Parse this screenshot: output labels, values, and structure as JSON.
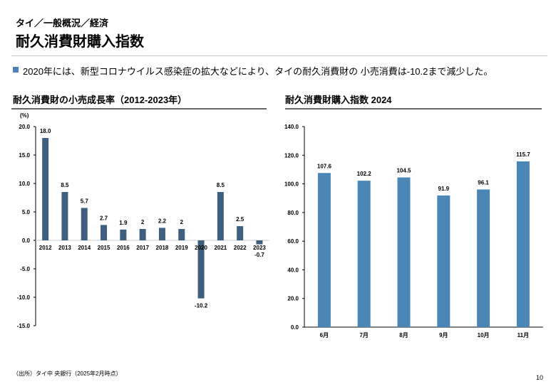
{
  "header": {
    "breadcrumb": "タイ／一般概況／経済",
    "title": "耐久消費財購入指数"
  },
  "summary": "2020年には、新型コロナウイルス感染症の拡大などにより、タイの耐久消費財の 小売消費は-10.2まで減少した。",
  "footer": {
    "source": "（出所）タイ中 央銀行（2025年2月時点）",
    "page_number": "10"
  },
  "colors": {
    "left_bars": "#3e5f7e",
    "right_bars": "#4a87b6",
    "bullet": "#4f81bd"
  },
  "chart_data": [
    {
      "type": "bar",
      "title": "耐久消費財の小売成長率（2012-2023年）",
      "ylabel": "(%)",
      "categories": [
        "2012",
        "2013",
        "2014",
        "2015",
        "2016",
        "2017",
        "2018",
        "2019",
        "2020",
        "2021",
        "2022",
        "2023"
      ],
      "values": [
        18.0,
        8.5,
        5.7,
        2.7,
        1.9,
        2,
        2.2,
        2,
        -10.2,
        8.5,
        2.5,
        -0.7
      ],
      "data_labels": [
        "18.0",
        "8.5",
        "5.7",
        "2.7",
        "1.9",
        "2",
        "2.2",
        "2",
        "-10.2",
        "8.5",
        "2.5",
        "-0.7"
      ],
      "ylim": [
        -15,
        20
      ],
      "yticks": [
        "20.0",
        "15.0",
        "10.0",
        "5.0",
        "0.0",
        "-5.0",
        "-10.0",
        "-15.0"
      ],
      "grid": false
    },
    {
      "type": "bar",
      "title": "耐久消費財購入指数 2024",
      "categories": [
        "6月",
        "7月",
        "8月",
        "9月",
        "10月",
        "11月"
      ],
      "values": [
        107.6,
        102.2,
        104.5,
        91.9,
        96.1,
        115.7
      ],
      "data_labels": [
        "107.6",
        "102.2",
        "104.5",
        "91.9",
        "96.1",
        "115.7"
      ],
      "ylim": [
        0,
        140
      ],
      "yticks": [
        "140.0",
        "120.0",
        "100.0",
        "80.0",
        "60.0",
        "40.0",
        "20.0",
        "0.0"
      ],
      "grid": false
    }
  ]
}
